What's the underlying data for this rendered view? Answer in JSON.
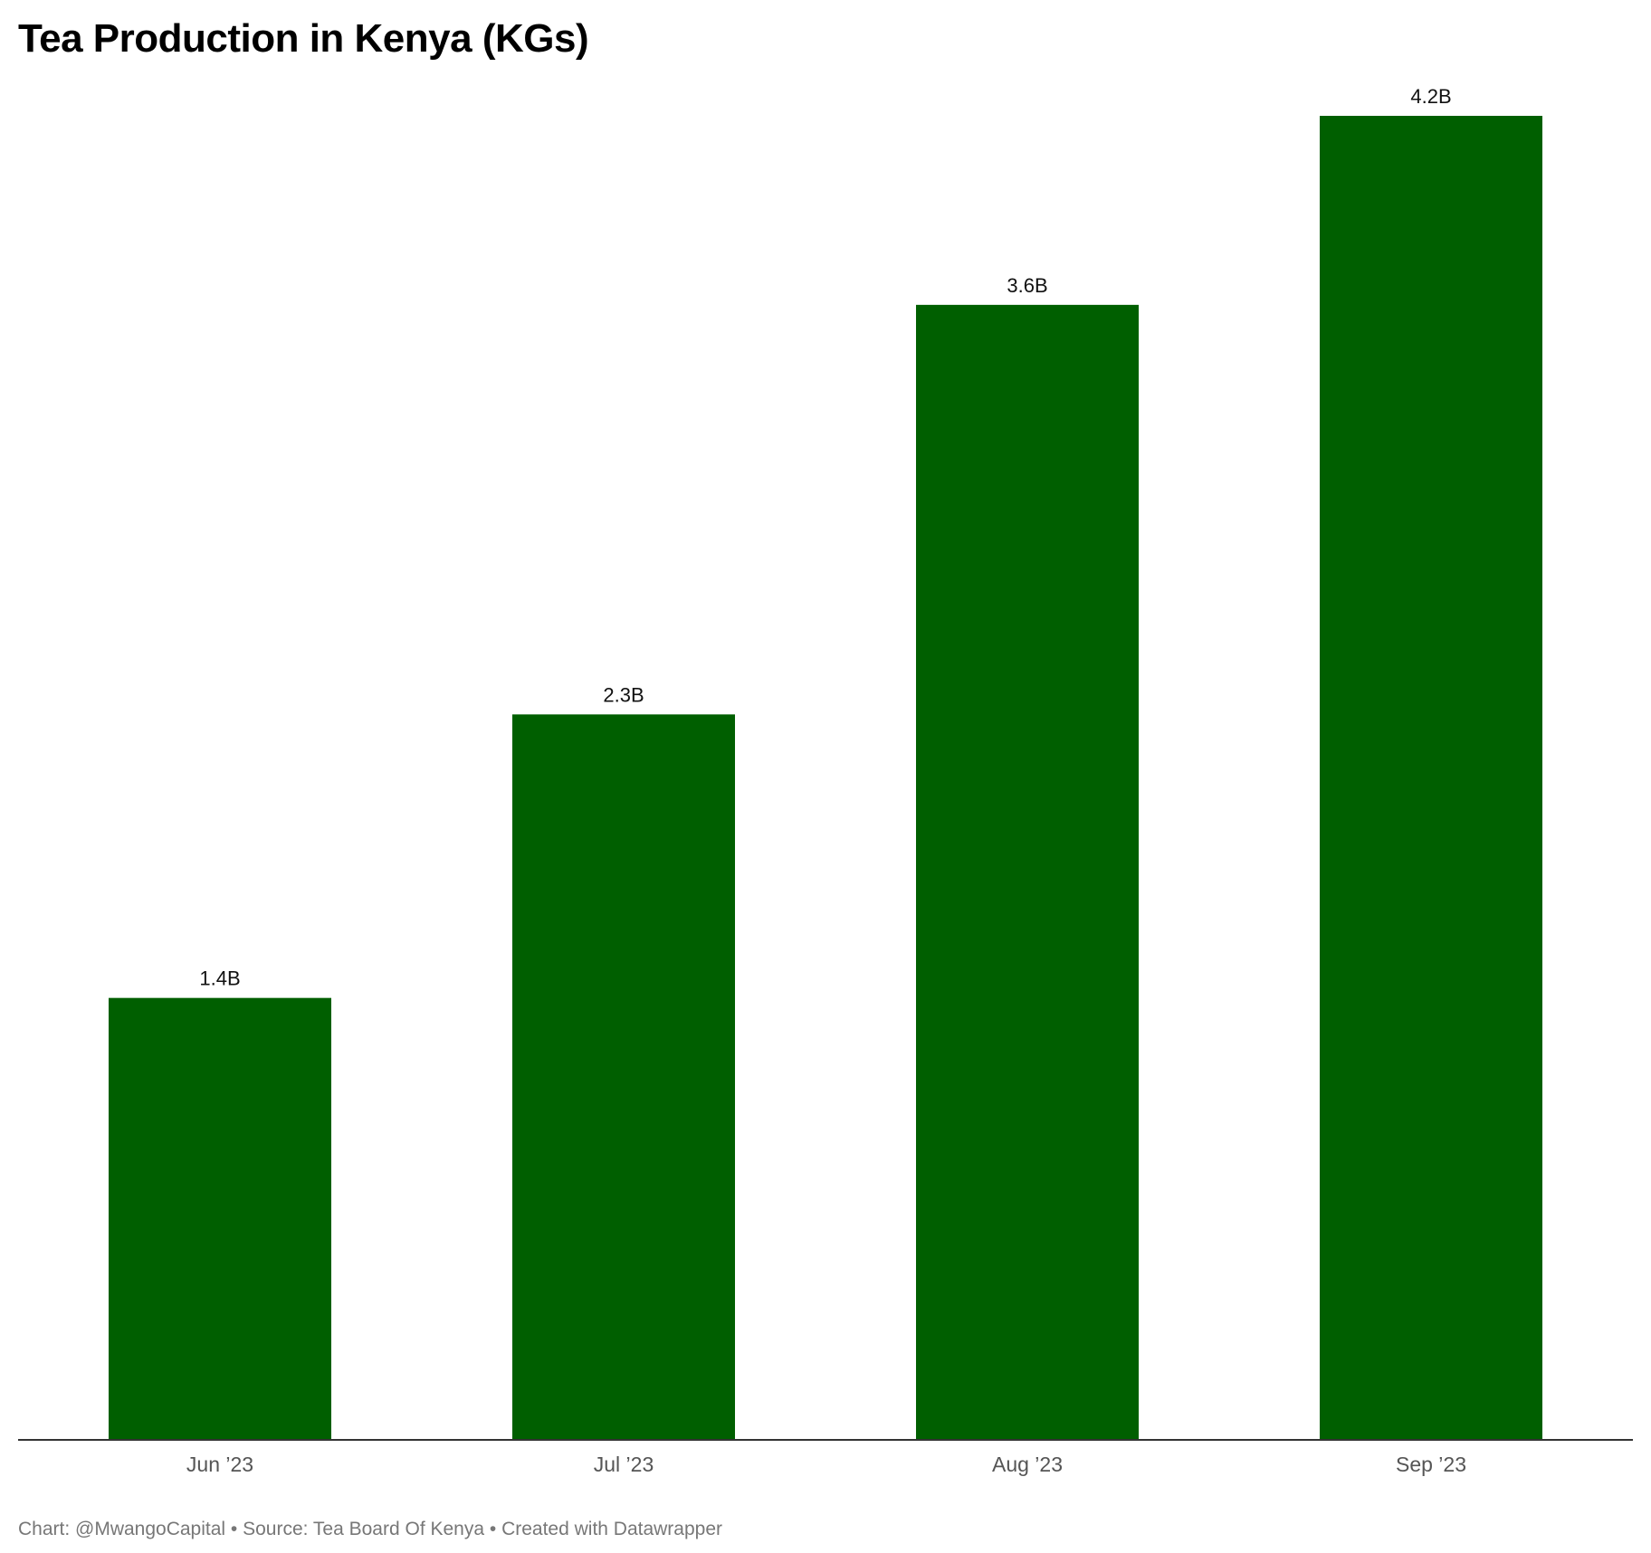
{
  "chart_data": {
    "type": "bar",
    "title": "Tea Production in Kenya (KGs)",
    "categories": [
      "Jun ’23",
      "Jul ’23",
      "Aug ’23",
      "Sep ’23"
    ],
    "values": [
      1.4,
      2.3,
      3.6,
      4.2
    ],
    "value_labels": [
      "1.4B",
      "2.3B",
      "3.6B",
      "4.2B"
    ],
    "value_unit": "billion KGs",
    "xlabel": "",
    "ylabel": "",
    "ylim": [
      0,
      4.2
    ],
    "grid": false,
    "legend": "none",
    "bar_color": "#005f00"
  },
  "footer": {
    "text": "Chart: @MwangoCapital • Source: Tea Board Of Kenya • Created with Datawrapper"
  }
}
